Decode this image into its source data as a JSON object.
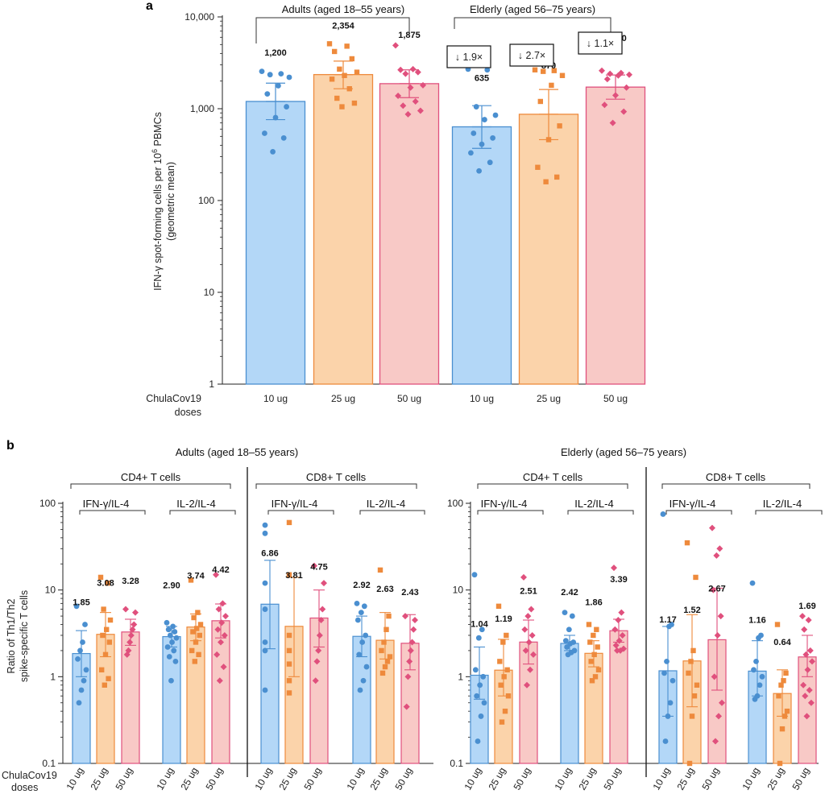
{
  "chart_data": [
    {
      "panel": "a",
      "type": "bar",
      "scale": "log",
      "ylim": [
        1,
        10000
      ],
      "yticks": [
        "1",
        "10",
        "100",
        "1,000",
        "10,000"
      ],
      "ylabel_line1": "IFN-γ spot-forming cells per 10",
      "ylabel_sup": "6",
      "ylabel_line1_end": " PBMCs",
      "ylabel_line2": "(geometric mean)",
      "xaxis_title_line1": "ChulaCov19",
      "xaxis_title_line2": "doses",
      "categories": [
        "10 ug",
        "25 ug",
        "50 ug",
        "10 ug",
        "25 ug",
        "50 ug"
      ],
      "groups": [
        "Adults (aged 18–55 years)",
        "Elderly (aged 56–75 years)"
      ],
      "fold_changes": [
        "↓ 1.9×",
        "↓ 2.7×",
        "↓ 1.1×"
      ],
      "colors": [
        "#4a8fd0",
        "#ee8a3c",
        "#e0507d"
      ],
      "bars": [
        {
          "value": 1200,
          "label": "1,200",
          "err": [
            760,
            1900
          ],
          "points": [
            2550,
            2400,
            2350,
            2200,
            1780,
            1450,
            1050,
            800,
            540,
            480,
            340
          ]
        },
        {
          "value": 2354,
          "label": "2,354",
          "err": [
            1650,
            3300
          ],
          "points": [
            5100,
            4800,
            4200,
            3500,
            2700,
            2500,
            2300,
            2100,
            1650,
            1300,
            1150,
            1050
          ]
        },
        {
          "value": 1875,
          "label": "1,875",
          "err": [
            1320,
            2650
          ],
          "points": [
            4900,
            2700,
            2650,
            2500,
            2400,
            1800,
            1700,
            1380,
            1200,
            1080,
            950,
            870
          ]
        },
        {
          "value": 635,
          "label": "635",
          "err": [
            370,
            1080
          ],
          "points": [
            2700,
            2650,
            1050,
            850,
            760,
            540,
            480,
            410,
            330,
            260,
            210
          ]
        },
        {
          "value": 870,
          "label": "870",
          "err": [
            460,
            1620
          ],
          "points": [
            2650,
            2600,
            2550,
            2300,
            1800,
            1200,
            650,
            460,
            230,
            180,
            160
          ]
        },
        {
          "value": 1720,
          "label": "1,720",
          "err": [
            1270,
            2330
          ],
          "points": [
            2600,
            2450,
            2400,
            2350,
            2300,
            2100,
            1700,
            1400,
            1100,
            930,
            700
          ]
        }
      ]
    },
    {
      "panel": "b",
      "type": "bar",
      "scale": "log",
      "ylim": [
        0.1,
        100
      ],
      "yticks": [
        "0.1",
        "1",
        "10",
        "100"
      ],
      "ylabel_line1": "Ratio of Th1/Th2",
      "ylabel_line2": "spike-specific T cells",
      "xaxis_title_line1": "ChulaCov19",
      "xaxis_title_line2": "doses",
      "dose_labels": [
        "10 ug",
        "25 ug",
        "50 ug"
      ],
      "group_titles": [
        "Adults (aged 18–55 years)",
        "Elderly (aged 56–75 years)"
      ],
      "cell_labels": [
        "CD4+ T cells",
        "CD8+ T cells",
        "CD4+ T cells",
        "CD8+ T cells"
      ],
      "ratio_labels": [
        "IFN-γ/IL-4",
        "IL-2/IL-4"
      ],
      "colors": [
        "#4a8fd0",
        "#ee8a3c",
        "#e0507d"
      ],
      "series": [
        {
          "group": "Adults",
          "cells": "CD4+",
          "ratio": "IFN-γ/IL-4",
          "values": [
            1.85,
            3.08,
            3.28
          ],
          "labels": [
            "1.85",
            "3.08",
            "3.28"
          ],
          "errs": [
            [
              1.0,
              3.4
            ],
            [
              1.7,
              5.5
            ],
            [
              2.3,
              4.6
            ]
          ],
          "points": [
            [
              6.5,
              4.0,
              2.5,
              2.0,
              1.6,
              1.2,
              0.9,
              0.7,
              0.5
            ],
            [
              14,
              12,
              6.0,
              4.5,
              3.5,
              3.0,
              2.5,
              1.8,
              1.2,
              0.95,
              0.8
            ],
            [
              6.0,
              5.5,
              4.0,
              3.5,
              3.0,
              2.5,
              2.0,
              1.8
            ]
          ]
        },
        {
          "group": "Adults",
          "cells": "CD4+",
          "ratio": "IL-2/IL-4",
          "values": [
            2.9,
            3.74,
            4.42
          ],
          "labels": [
            "2.90",
            "3.74",
            "4.42"
          ],
          "errs": [
            [
              2.2,
              3.8
            ],
            [
              2.6,
              5.3
            ],
            [
              2.8,
              6.9
            ]
          ],
          "points": [
            [
              4.2,
              3.8,
              3.5,
              3.3,
              3.0,
              2.8,
              2.5,
              2.2,
              2.0,
              1.7,
              1.5,
              0.9
            ],
            [
              13,
              5.5,
              4.8,
              4.0,
              3.6,
              3.3,
              3.0,
              2.5,
              2.0,
              1.8,
              1.5
            ],
            [
              15,
              7.0,
              6.0,
              5.0,
              4.2,
              3.5,
              3.0,
              2.5,
              1.8,
              1.3,
              0.9
            ]
          ]
        },
        {
          "group": "Adults",
          "cells": "CD8+",
          "ratio": "IFN-γ/IL-4",
          "values": [
            6.86,
            3.81,
            4.75
          ],
          "labels": [
            "6.86",
            "3.81",
            "4.75"
          ],
          "errs": [
            [
              2.1,
              22
            ],
            [
              1.0,
              14
            ],
            [
              2.2,
              10
            ]
          ],
          "points": [
            [
              56,
              45,
              12,
              6.0,
              2.5,
              2.0,
              0.7
            ],
            [
              60,
              15,
              3.0,
              2.0,
              1.4,
              0.9,
              0.65
            ],
            [
              19,
              12,
              6.0,
              4.5,
              3.0,
              2.0,
              1.5,
              0.9
            ]
          ]
        },
        {
          "group": "Adults",
          "cells": "CD8+",
          "ratio": "IL-2/IL-4",
          "values": [
            2.92,
            2.63,
            2.43
          ],
          "labels": [
            "2.92",
            "2.63",
            "2.43"
          ],
          "errs": [
            [
              1.7,
              5.0
            ],
            [
              1.6,
              5.5
            ],
            [
              1.2,
              5.2
            ]
          ],
          "points": [
            [
              7.0,
              6.5,
              5.5,
              4.5,
              3.0,
              2.5,
              1.8,
              1.3,
              0.9,
              0.7
            ],
            [
              17,
              5.0,
              3.5,
              2.5,
              2.0,
              1.7,
              1.5,
              1.3,
              1.1
            ],
            [
              5.0,
              4.5,
              3.5,
              2.5,
              2.0,
              1.5,
              1.0,
              0.45
            ]
          ]
        },
        {
          "group": "Elderly",
          "cells": "CD4+",
          "ratio": "IFN-γ/IL-4",
          "values": [
            1.04,
            1.19,
            2.51
          ],
          "labels": [
            "1.04",
            "1.19",
            "2.51"
          ],
          "errs": [
            [
              0.55,
              2.2
            ],
            [
              0.6,
              2.7
            ],
            [
              1.4,
              4.5
            ]
          ],
          "points": [
            [
              15,
              3.5,
              2.8,
              1.2,
              1.0,
              0.8,
              0.6,
              0.5,
              0.35,
              0.18
            ],
            [
              6.5,
              3.0,
              2.5,
              1.5,
              1.2,
              1.0,
              0.8,
              0.6,
              0.4,
              0.3
            ],
            [
              14,
              6.0,
              5.0,
              3.5,
              3.0,
              2.5,
              2.0,
              1.8,
              1.2,
              0.8
            ]
          ]
        },
        {
          "group": "Elderly",
          "cells": "CD4+",
          "ratio": "IL-2/IL-4",
          "values": [
            2.42,
            1.86,
            3.39
          ],
          "labels": [
            "2.42",
            "1.86",
            "3.39"
          ],
          "errs": [
            [
              2.0,
              3.0
            ],
            [
              1.3,
              2.6
            ],
            [
              2.5,
              4.6
            ]
          ],
          "points": [
            [
              5.5,
              5.0,
              3.5,
              2.6,
              2.5,
              2.4,
              2.2,
              2.0,
              1.9,
              1.8
            ],
            [
              4.0,
              3.5,
              3.0,
              2.5,
              2.2,
              1.8,
              1.5,
              1.2,
              1.0,
              0.9
            ],
            [
              18,
              5.5,
              4.5,
              3.5,
              3.0,
              2.6,
              2.3,
              2.1,
              2.0,
              2.0
            ]
          ]
        },
        {
          "group": "Elderly",
          "cells": "CD8+",
          "ratio": "IFN-γ/IL-4",
          "values": [
            1.17,
            1.52,
            2.67
          ],
          "labels": [
            "1.17",
            "1.52",
            "2.67"
          ],
          "errs": [
            [
              0.35,
              3.8
            ],
            [
              0.45,
              5.2
            ],
            [
              0.7,
              10.5
            ]
          ],
          "points": [
            [
              75,
              4.0,
              3.8,
              1.5,
              1.1,
              0.9,
              0.5,
              0.35,
              0.18
            ],
            [
              35,
              14,
              2.0,
              1.5,
              1.1,
              0.8,
              0.6,
              0.35,
              0.1
            ],
            [
              52,
              30,
              25,
              10,
              5.0,
              3.0,
              1.0,
              0.5,
              0.35,
              0.18
            ]
          ]
        },
        {
          "group": "Elderly",
          "cells": "CD8+",
          "ratio": "IL-2/IL-4",
          "values": [
            1.16,
            0.64,
            1.69
          ],
          "labels": [
            "1.16",
            "0.64",
            "1.69"
          ],
          "errs": [
            [
              0.6,
              2.6
            ],
            [
              0.35,
              1.2
            ],
            [
              1.0,
              3.0
            ]
          ],
          "points": [
            [
              12,
              3.0,
              2.8,
              1.5,
              1.2,
              1.0,
              0.8,
              0.6,
              0.55
            ],
            [
              4.0,
              1.1,
              0.9,
              0.8,
              0.6,
              0.4,
              0.35,
              0.25,
              0.1
            ],
            [
              5.0,
              4.5,
              3.5,
              2.0,
              1.8,
              1.5,
              1.2,
              0.8,
              0.7,
              0.6,
              0.5,
              0.35
            ]
          ]
        }
      ]
    }
  ]
}
